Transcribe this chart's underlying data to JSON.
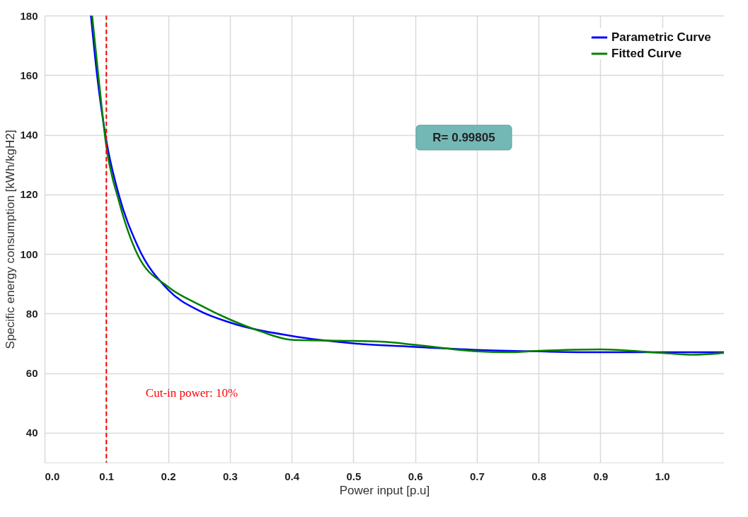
{
  "chart_data": {
    "type": "line",
    "xlabel": "Power input [p.u]",
    "ylabel": "Specific energy consumption [kWh/kgH2]",
    "xlim": [
      0,
      1.1
    ],
    "ylim": [
      30,
      180
    ],
    "xticks": [
      {
        "value": 0,
        "label": "0.0"
      },
      0.1,
      0.2,
      0.3,
      0.4,
      0.5,
      0.6,
      0.7,
      0.8,
      0.9,
      {
        "value": 1,
        "label": "1.0"
      }
    ],
    "yticks": [
      40,
      60,
      80,
      100,
      120,
      140,
      160,
      180
    ],
    "grid": true,
    "legend": "top right",
    "line_style": "solid",
    "marker": "none",
    "series": [
      {
        "name": "Parametric Curve",
        "color": "#0000ff",
        "x": [
          0.075,
          0.085,
          0.1,
          0.12,
          0.15,
          0.2,
          0.25,
          0.3,
          0.4,
          0.5,
          0.6,
          0.7,
          0.8,
          0.9,
          1.0,
          1.1
        ],
        "values": [
          180,
          160,
          138,
          120,
          103,
          88,
          81,
          77,
          72.5,
          70,
          68.8,
          67.8,
          67.3,
          67,
          67,
          67
        ]
      },
      {
        "name": "Fitted Curve",
        "color": "#008000",
        "x": [
          0.077,
          0.087,
          0.1,
          0.12,
          0.15,
          0.2,
          0.25,
          0.3,
          0.35,
          0.4,
          0.5,
          0.55,
          0.6,
          0.7,
          0.75,
          0.8,
          0.9,
          1.0,
          1.05,
          1.1
        ],
        "values": [
          180,
          160,
          136,
          118,
          100,
          89,
          83,
          78,
          74,
          71.2,
          70.8,
          70.5,
          69.5,
          67.3,
          67,
          67.5,
          68,
          66.8,
          66.2,
          66.8
        ]
      }
    ],
    "ref_lines": [
      {
        "axis": "x",
        "value": 0.1,
        "color": "#ff0000",
        "line_style": "dashed"
      }
    ],
    "annotations": [
      "Cut-in power: 10%",
      "R= 0.99805"
    ]
  }
}
